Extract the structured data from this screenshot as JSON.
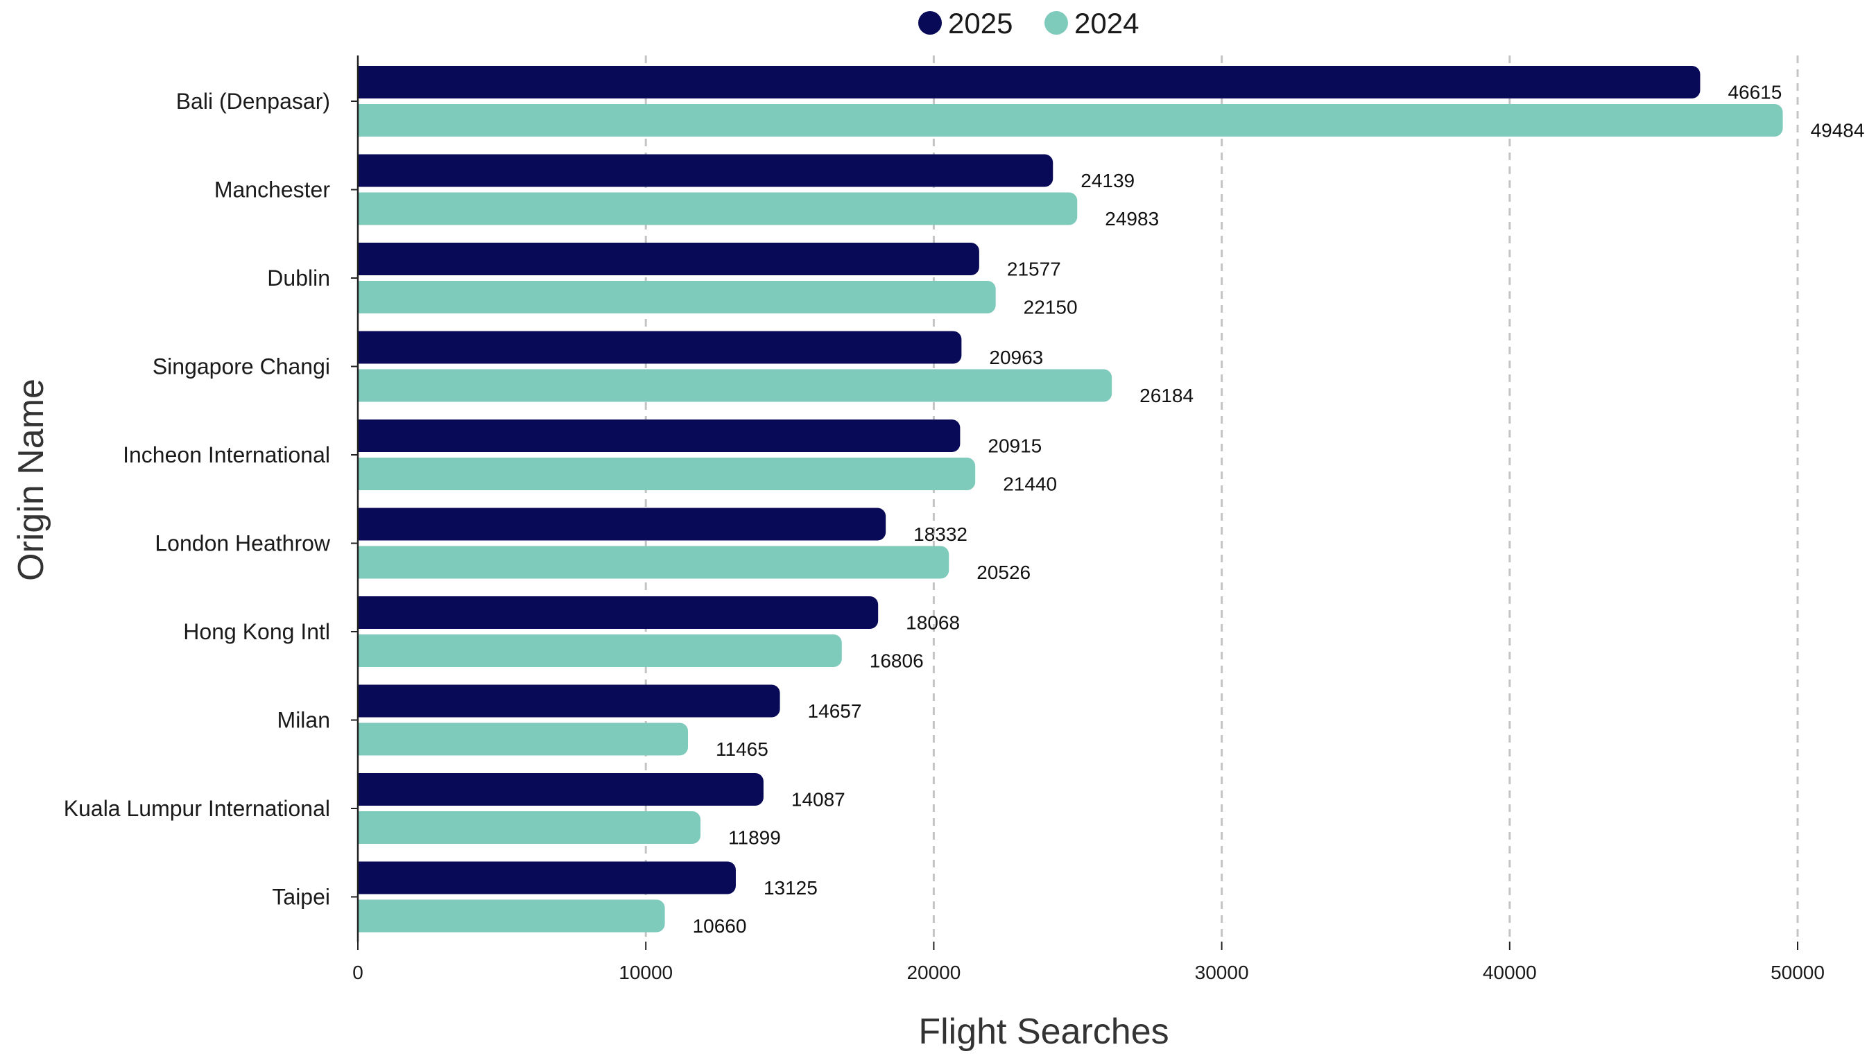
{
  "chart_data": {
    "type": "bar",
    "orientation": "horizontal",
    "categories": [
      "Bali (Denpasar)",
      "Manchester",
      "Dublin",
      "Singapore Changi",
      "Incheon International",
      "London Heathrow",
      "Hong Kong Intl",
      "Milan",
      "Kuala Lumpur International",
      "Taipei"
    ],
    "series": [
      {
        "name": "2025",
        "color": "#080a58",
        "values": [
          46615,
          24139,
          21577,
          20963,
          20915,
          18332,
          18068,
          14657,
          14087,
          13125
        ]
      },
      {
        "name": "2024",
        "color": "#7ecabb",
        "values": [
          49484,
          24983,
          22150,
          26184,
          21440,
          20526,
          16806,
          11465,
          11899,
          10660
        ]
      }
    ],
    "xlabel": "Flight Searches",
    "ylabel": "Origin Name",
    "xlim": [
      0,
      50000
    ],
    "xticks": [
      "0",
      "10000",
      "20000",
      "30000",
      "40000",
      "50000"
    ],
    "grid": true,
    "legend_position": "top-center",
    "data_labels": true
  }
}
